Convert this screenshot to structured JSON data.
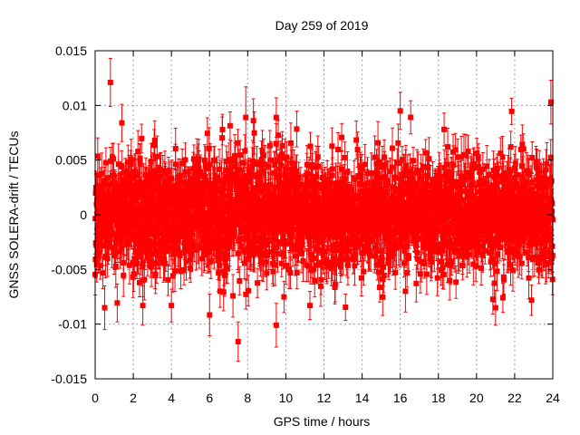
{
  "chart_data": {
    "type": "scatter",
    "title": "Day 259 of 2019",
    "xlabel": "GPS time / hours",
    "ylabel": "GNSS SOLERA-drift / TECUs",
    "xlim": [
      0,
      24
    ],
    "ylim": [
      -0.015,
      0.015
    ],
    "xticks": [
      0,
      2,
      4,
      6,
      8,
      10,
      12,
      14,
      16,
      18,
      20,
      22,
      24
    ],
    "xtick_labels": [
      "0",
      "2",
      "4",
      "6",
      "8",
      "10",
      "12",
      "14",
      "16",
      "18",
      "20",
      "22",
      "24"
    ],
    "yticks": [
      -0.015,
      -0.01,
      -0.005,
      0,
      0.005,
      0.01,
      0.015
    ],
    "ytick_labels": [
      "-0.015",
      "-0.01",
      "-0.005",
      "0",
      "0.005",
      "0.01",
      "0.015"
    ],
    "grid": true,
    "legend": "none",
    "series_color": "#ff0000",
    "marker": "square",
    "error_bars": true,
    "noise_std_typical": 0.0025,
    "error_typical": 0.0015,
    "n_points_approx": 2880,
    "highlighted_points": [
      {
        "x": 0.8,
        "y": 0.0121,
        "err": 0.0022
      },
      {
        "x": 1.4,
        "y": 0.0084,
        "err": 0.0017
      },
      {
        "x": 2.5,
        "y": -0.0083,
        "err": 0.0018
      },
      {
        "x": 4.0,
        "y": -0.0083,
        "err": 0.0015
      },
      {
        "x": 7.5,
        "y": -0.0116,
        "err": 0.0018
      },
      {
        "x": 7.9,
        "y": 0.0089,
        "err": 0.0028
      },
      {
        "x": 8.3,
        "y": 0.0086,
        "err": 0.002
      },
      {
        "x": 9.5,
        "y": -0.0101,
        "err": 0.002
      },
      {
        "x": 9.5,
        "y": 0.0089,
        "err": 0.0018
      },
      {
        "x": 16.0,
        "y": 0.0095,
        "err": 0.0017
      },
      {
        "x": 18.3,
        "y": 0.0078,
        "err": 0.0015
      },
      {
        "x": 23.9,
        "y": 0.0103,
        "err": 0.002
      },
      {
        "x": 0.5,
        "y": -0.0085,
        "err": 0.002
      },
      {
        "x": 21.0,
        "y": -0.0085,
        "err": 0.0016
      }
    ]
  }
}
